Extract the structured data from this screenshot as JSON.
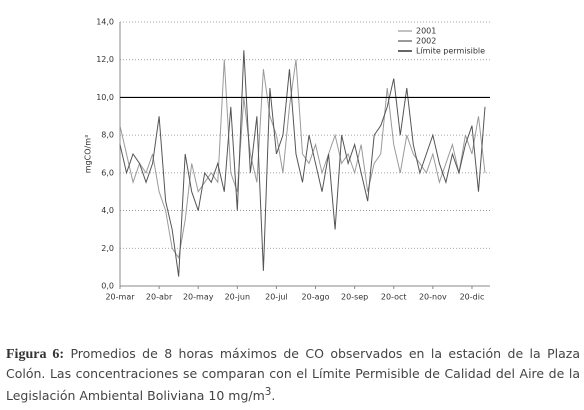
{
  "chart_data": {
    "type": "line",
    "ylabel": "mgCO/m³",
    "categories": [
      "20-mar",
      null,
      null,
      null,
      null,
      null,
      "20-abr",
      null,
      null,
      null,
      null,
      null,
      "20-may",
      null,
      null,
      null,
      null,
      null,
      "20-jun",
      null,
      null,
      null,
      null,
      null,
      "20-jul",
      null,
      null,
      null,
      null,
      null,
      "20-ago",
      null,
      null,
      null,
      null,
      null,
      "20-sep",
      null,
      null,
      null,
      null,
      null,
      "20-oct",
      null,
      null,
      null,
      null,
      null,
      "20-nov",
      null,
      null,
      null,
      null,
      null,
      "20-dic",
      null,
      null
    ],
    "series": [
      {
        "name": "2001",
        "color": "#9a9a9a",
        "values": [
          8.5,
          7.0,
          5.5,
          6.5,
          6.0,
          7.0,
          5.0,
          4.0,
          2.0,
          1.5,
          3.5,
          6.5,
          5.0,
          5.5,
          6.0,
          5.5,
          12.0,
          6.0,
          5.0,
          10.0,
          7.0,
          5.5,
          11.5,
          9.0,
          8.0,
          6.0,
          9.5,
          12.0,
          7.0,
          6.5,
          7.5,
          6.0,
          7.0,
          8.0,
          6.5,
          7.0,
          6.0,
          7.5,
          5.0,
          6.5,
          7.0,
          10.5,
          7.5,
          6.0,
          8.0,
          7.0,
          6.5,
          6.0,
          7.0,
          5.5,
          6.5,
          7.5,
          6.0,
          8.0,
          7.0,
          9.0,
          6.0
        ]
      },
      {
        "name": "2002",
        "color": "#555555",
        "values": [
          7.5,
          6.0,
          7.0,
          6.5,
          5.5,
          6.5,
          9.0,
          4.5,
          3.0,
          0.5,
          7.0,
          5.0,
          4.0,
          6.0,
          5.5,
          6.5,
          5.0,
          9.5,
          4.0,
          12.5,
          6.0,
          9.0,
          0.8,
          10.5,
          7.0,
          8.0,
          11.5,
          7.0,
          5.5,
          8.0,
          6.5,
          5.0,
          7.0,
          3.0,
          8.0,
          6.5,
          7.5,
          6.0,
          4.5,
          8.0,
          8.5,
          9.5,
          11.0,
          8.0,
          10.5,
          7.5,
          6.0,
          7.0,
          8.0,
          6.5,
          5.5,
          7.0,
          6.0,
          7.5,
          8.5,
          5.0,
          9.5
        ]
      }
    ],
    "hlines": [
      {
        "name": "Límite permisible",
        "value": 10,
        "color": "#000000"
      }
    ],
    "ylim": [
      0,
      14
    ],
    "yticks": [
      {
        "value": 0,
        "label": "0,0"
      },
      {
        "value": 2,
        "label": "2,0"
      },
      {
        "value": 4,
        "label": "4,0"
      },
      {
        "value": 6,
        "label": "6,0"
      },
      {
        "value": 8,
        "label": "8,0"
      },
      {
        "value": 10,
        "label": "10,0"
      },
      {
        "value": 12,
        "label": "12,0"
      },
      {
        "value": 14,
        "label": "14,0"
      }
    ],
    "grid": true,
    "legend": "top-right"
  },
  "caption": {
    "label": "Figura 6:",
    "text": "Promedios de 8 horas máximos de CO observados en la estación de la Plaza Colón. Las concentraciones se comparan con el Límite Permisible de Calidad del Aire de la Legislación Ambiental Boliviana 10 mg/m",
    "sup": "3",
    "end": "."
  }
}
